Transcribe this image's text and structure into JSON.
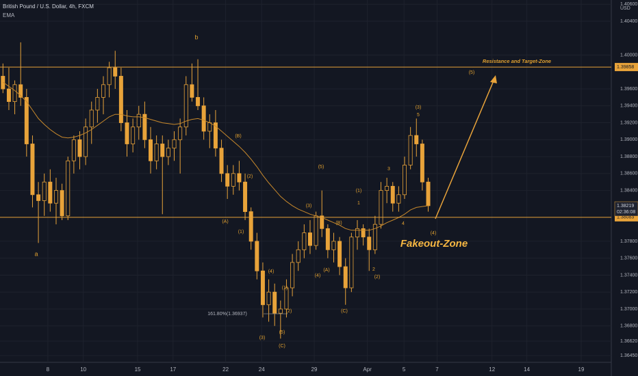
{
  "chart_data": {
    "type": "candlestick",
    "title": "British Pound / U.S. Dollar, 4h, FXCM",
    "indicator": "EMA",
    "unit": "USD",
    "up_color": "#131722",
    "down_color": "#e8a33a",
    "wick_color": "#e8a33a",
    "ema_color": "#c8892c",
    "grid": true,
    "ylim": [
      1.3637,
      1.4065
    ],
    "yticks": [
      {
        "value": 1.406,
        "label": "1.40600"
      },
      {
        "value": 1.404,
        "label": "1.40400"
      },
      {
        "value": 1.4,
        "label": "1.40000"
      },
      {
        "value": 1.396,
        "label": "1.39600"
      },
      {
        "value": 1.394,
        "label": "1.39400"
      },
      {
        "value": 1.392,
        "label": "1.39200"
      },
      {
        "value": 1.39,
        "label": "1.39000"
      },
      {
        "value": 1.388,
        "label": "1.38800"
      },
      {
        "value": 1.386,
        "label": "1.38600"
      },
      {
        "value": 1.384,
        "label": "1.38400"
      },
      {
        "value": 1.378,
        "label": "1.37800"
      },
      {
        "value": 1.376,
        "label": "1.37600"
      },
      {
        "value": 1.374,
        "label": "1.37400"
      },
      {
        "value": 1.372,
        "label": "1.37200"
      },
      {
        "value": 1.37,
        "label": "1.37000"
      },
      {
        "value": 1.368,
        "label": "1.36800"
      },
      {
        "value": 1.3662,
        "label": "1.36620"
      },
      {
        "value": 1.3645,
        "label": "1.36450"
      }
    ],
    "xlim": [
      0,
      103.5
    ],
    "xticks": [
      {
        "value": 8.1,
        "label": "8"
      },
      {
        "value": 14.1,
        "label": "10"
      },
      {
        "value": 23.3,
        "label": "15"
      },
      {
        "value": 29.3,
        "label": "17"
      },
      {
        "value": 38.2,
        "label": "22"
      },
      {
        "value": 44.3,
        "label": "24"
      },
      {
        "value": 53.2,
        "label": "29"
      },
      {
        "value": 62.2,
        "label": "Apr"
      },
      {
        "value": 68.4,
        "label": "5"
      },
      {
        "value": 74.0,
        "label": "7"
      },
      {
        "value": 83.3,
        "label": "12"
      },
      {
        "value": 89.2,
        "label": "14"
      },
      {
        "value": 98.4,
        "label": "19"
      }
    ],
    "levels": [
      1.39858,
      1.38083
    ],
    "last_price": 1.38219,
    "countdown": "02:36:08",
    "candles": [
      [
        1.3975,
        1.399,
        1.3955,
        1.396
      ],
      [
        1.396,
        1.3985,
        1.3935,
        1.3945
      ],
      [
        1.3945,
        1.397,
        1.393,
        1.3965
      ],
      [
        1.3965,
        1.4015,
        1.394,
        1.395
      ],
      [
        1.395,
        1.396,
        1.388,
        1.3895
      ],
      [
        1.3895,
        1.3905,
        1.382,
        1.3835
      ],
      [
        1.3835,
        1.385,
        1.3778,
        1.3828
      ],
      [
        1.3828,
        1.386,
        1.381,
        1.385
      ],
      [
        1.385,
        1.3865,
        1.3815,
        1.3825
      ],
      [
        1.3825,
        1.3855,
        1.38,
        1.384
      ],
      [
        1.384,
        1.3848,
        1.3805,
        1.381
      ],
      [
        1.381,
        1.388,
        1.3805,
        1.3875
      ],
      [
        1.3875,
        1.3905,
        1.386,
        1.39
      ],
      [
        1.39,
        1.391,
        1.3865,
        1.388
      ],
      [
        1.388,
        1.3925,
        1.387,
        1.3915
      ],
      [
        1.3915,
        1.3945,
        1.3895,
        1.3935
      ],
      [
        1.3935,
        1.396,
        1.392,
        1.395
      ],
      [
        1.395,
        1.3975,
        1.393,
        1.3965
      ],
      [
        1.3965,
        1.3992,
        1.395,
        1.3985
      ],
      [
        1.3985,
        1.4005,
        1.396,
        1.3975
      ],
      [
        1.3975,
        1.3985,
        1.391,
        1.392
      ],
      [
        1.392,
        1.3935,
        1.388,
        1.3895
      ],
      [
        1.3895,
        1.3925,
        1.3885,
        1.3915
      ],
      [
        1.3915,
        1.394,
        1.39,
        1.393
      ],
      [
        1.393,
        1.3945,
        1.389,
        1.39
      ],
      [
        1.39,
        1.3915,
        1.386,
        1.3875
      ],
      [
        1.3875,
        1.3905,
        1.3865,
        1.3895
      ],
      [
        1.3895,
        1.3905,
        1.3812,
        1.388
      ],
      [
        1.388,
        1.39,
        1.387,
        1.389
      ],
      [
        1.389,
        1.391,
        1.3875,
        1.39
      ],
      [
        1.39,
        1.3925,
        1.386,
        1.3915
      ],
      [
        1.3915,
        1.3975,
        1.3905,
        1.3965
      ],
      [
        1.3965,
        1.399,
        1.3945,
        1.395
      ],
      [
        1.395,
        1.3995,
        1.3935,
        1.394
      ],
      [
        1.394,
        1.395,
        1.39,
        1.391
      ],
      [
        1.391,
        1.393,
        1.389,
        1.392
      ],
      [
        1.392,
        1.3935,
        1.388,
        1.389
      ],
      [
        1.389,
        1.39,
        1.385,
        1.386
      ],
      [
        1.386,
        1.387,
        1.383,
        1.3845
      ],
      [
        1.3845,
        1.387,
        1.3835,
        1.386
      ],
      [
        1.386,
        1.3875,
        1.384,
        1.385
      ],
      [
        1.385,
        1.386,
        1.3805,
        1.3815
      ],
      [
        1.3815,
        1.382,
        1.377,
        1.378
      ],
      [
        1.378,
        1.379,
        1.3735,
        1.3745
      ],
      [
        1.3745,
        1.3755,
        1.369,
        1.3705
      ],
      [
        1.3705,
        1.3735,
        1.3685,
        1.372
      ],
      [
        1.372,
        1.373,
        1.368,
        1.3695
      ],
      [
        1.3695,
        1.371,
        1.3665,
        1.37
      ],
      [
        1.37,
        1.3735,
        1.369,
        1.3725
      ],
      [
        1.3725,
        1.3765,
        1.3715,
        1.3755
      ],
      [
        1.3755,
        1.378,
        1.3745,
        1.377
      ],
      [
        1.377,
        1.38,
        1.376,
        1.379
      ],
      [
        1.379,
        1.3805,
        1.3765,
        1.3775
      ],
      [
        1.3775,
        1.3815,
        1.377,
        1.381
      ],
      [
        1.381,
        1.384,
        1.3785,
        1.3795
      ],
      [
        1.3795,
        1.38,
        1.376,
        1.377
      ],
      [
        1.377,
        1.379,
        1.3755,
        1.378
      ],
      [
        1.378,
        1.3785,
        1.374,
        1.375
      ],
      [
        1.375,
        1.376,
        1.3705,
        1.3725
      ],
      [
        1.3725,
        1.379,
        1.372,
        1.3785
      ],
      [
        1.3785,
        1.3805,
        1.377,
        1.3795
      ],
      [
        1.3795,
        1.38,
        1.3775,
        1.3785
      ],
      [
        1.3785,
        1.3795,
        1.3745,
        1.377
      ],
      [
        1.377,
        1.381,
        1.3765,
        1.38
      ],
      [
        1.38,
        1.385,
        1.3795,
        1.384
      ],
      [
        1.384,
        1.3855,
        1.3825,
        1.3845
      ],
      [
        1.3845,
        1.385,
        1.3815,
        1.3825
      ],
      [
        1.3825,
        1.3845,
        1.3815,
        1.3835
      ],
      [
        1.3835,
        1.388,
        1.383,
        1.387
      ],
      [
        1.387,
        1.3915,
        1.3865,
        1.3905
      ],
      [
        1.3905,
        1.3925,
        1.388,
        1.3895
      ],
      [
        1.3895,
        1.39,
        1.384,
        1.385
      ],
      [
        1.385,
        1.3855,
        1.3815,
        1.3822
      ]
    ],
    "ema": [
      1.3968,
      1.3963,
      1.3958,
      1.3952,
      1.3945,
      1.3935,
      1.3925,
      1.3918,
      1.3912,
      1.3907,
      1.3903,
      1.3902,
      1.3903,
      1.3905,
      1.3908,
      1.3912,
      1.3917,
      1.3922,
      1.3927,
      1.393,
      1.393,
      1.3928,
      1.3927,
      1.3927,
      1.3926,
      1.3924,
      1.3922,
      1.392,
      1.3919,
      1.3918,
      1.3919,
      1.3922,
      1.3924,
      1.3925,
      1.3923,
      1.392,
      1.3916,
      1.391,
      1.3904,
      1.3898,
      1.3892,
      1.3885,
      1.3877,
      1.3868,
      1.3858,
      1.3849,
      1.3841,
      1.3833,
      1.3827,
      1.3822,
      1.3818,
      1.3815,
      1.3812,
      1.381,
      1.3808,
      1.3805,
      1.3802,
      1.3799,
      1.3795,
      1.3793,
      1.3793,
      1.3793,
      1.3793,
      1.3795,
      1.3798,
      1.3802,
      1.3805,
      1.3808,
      1.3812,
      1.3817,
      1.382,
      1.3821,
      1.3822
    ],
    "annotations": [
      "b",
      "a",
      "Resistance and Target-Zone",
      "(5)",
      "(3)",
      "5",
      "3",
      "4",
      "(4)",
      "(1)",
      "1",
      "(B)",
      "(5)",
      "(3)",
      "(A)",
      "(2)",
      "(B)",
      "(1)",
      "(4)",
      "(1)",
      "(4)",
      "(A)",
      "2",
      "(2)",
      "(C)",
      "(2)",
      "(5)",
      "(3)",
      "(C)",
      "161.80%(1.36937)",
      "Fakeout-Zone"
    ]
  }
}
